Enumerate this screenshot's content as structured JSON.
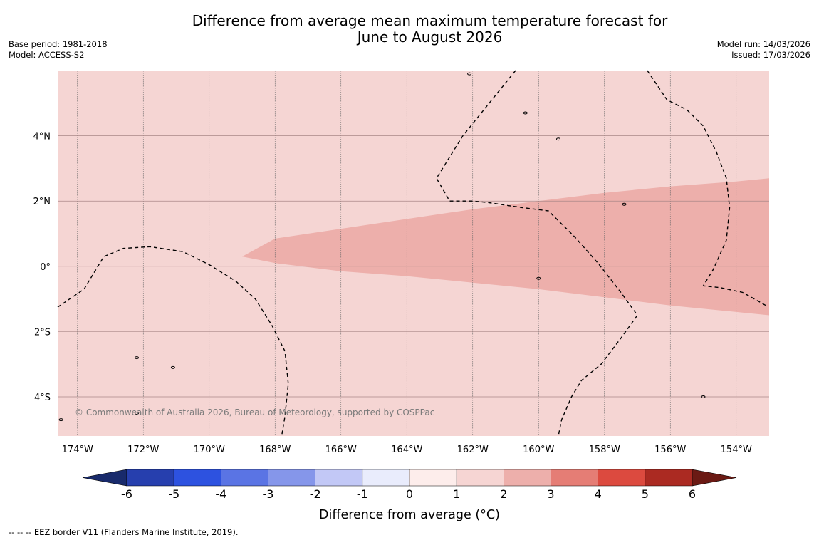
{
  "title_line1": "Difference from average mean maximum temperature forecast for",
  "title_line2": "June to August 2026",
  "base_period": "Base period: 1981-2018",
  "model": "Model: ACCESS-S2",
  "model_run": "Model run: 14/03/2026",
  "issued": "Issued: 17/03/2026",
  "copyright": "© Commonwealth of Australia 2026, Bureau of Meteorology, supported by COSPPac",
  "footnote": "--  --  -- EEZ border V11 (Flanders Marine Institute, 2019).",
  "map": {
    "lon_range": [
      -174.6,
      -153.0
    ],
    "lat_range": [
      -5.2,
      6.0
    ],
    "lon_ticks": [
      {
        "value": -174,
        "label": "174°W"
      },
      {
        "value": -172,
        "label": "172°W"
      },
      {
        "value": -170,
        "label": "170°W"
      },
      {
        "value": -168,
        "label": "168°W"
      },
      {
        "value": -166,
        "label": "166°W"
      },
      {
        "value": -164,
        "label": "164°W"
      },
      {
        "value": -162,
        "label": "162°W"
      },
      {
        "value": -160,
        "label": "160°W"
      },
      {
        "value": -158,
        "label": "158°W"
      },
      {
        "value": -156,
        "label": "156°W"
      },
      {
        "value": -154,
        "label": "154°W"
      }
    ],
    "lat_ticks": [
      {
        "value": 4,
        "label": "4°N"
      },
      {
        "value": 2,
        "label": "2°N"
      },
      {
        "value": 0,
        "label": "0°"
      },
      {
        "value": -2,
        "label": "2°S"
      },
      {
        "value": -4,
        "label": "4°S"
      }
    ],
    "background_category": "1 to 2",
    "anomaly_region_category": "2 to 3",
    "anomaly_region": [
      [
        -169.0,
        0.3
      ],
      [
        -168.0,
        0.85
      ],
      [
        -166.0,
        1.15
      ],
      [
        -164.0,
        1.45
      ],
      [
        -162.0,
        1.75
      ],
      [
        -160.0,
        2.0
      ],
      [
        -158.0,
        2.25
      ],
      [
        -156.0,
        2.45
      ],
      [
        -154.0,
        2.6
      ],
      [
        -153.0,
        2.7
      ],
      [
        -153.0,
        -1.5
      ],
      [
        -154.0,
        -1.4
      ],
      [
        -156.0,
        -1.2
      ],
      [
        -158.0,
        -0.95
      ],
      [
        -160.0,
        -0.7
      ],
      [
        -162.0,
        -0.5
      ],
      [
        -164.0,
        -0.3
      ],
      [
        -166.0,
        -0.15
      ],
      [
        -168.0,
        0.1
      ]
    ],
    "eez_lines": [
      [
        [
          -174.6,
          -1.25
        ],
        [
          -173.8,
          -0.7
        ],
        [
          -173.2,
          0.3
        ],
        [
          -172.6,
          0.55
        ],
        [
          -171.8,
          0.6
        ],
        [
          -170.8,
          0.45
        ],
        [
          -170.0,
          0.05
        ],
        [
          -169.2,
          -0.45
        ],
        [
          -168.6,
          -1.0
        ],
        [
          -168.1,
          -1.8
        ],
        [
          -167.7,
          -2.6
        ],
        [
          -167.6,
          -3.6
        ],
        [
          -167.7,
          -4.6
        ],
        [
          -167.8,
          -5.2
        ]
      ],
      [
        [
          -160.7,
          6.0
        ],
        [
          -161.5,
          5.0
        ],
        [
          -162.3,
          4.0
        ],
        [
          -163.1,
          2.7
        ],
        [
          -162.7,
          2.0
        ],
        [
          -162.0,
          2.0
        ],
        [
          -161.5,
          1.95
        ],
        [
          -160.5,
          1.8
        ],
        [
          -159.7,
          1.7
        ],
        [
          -158.9,
          0.9
        ],
        [
          -158.2,
          0.1
        ],
        [
          -157.5,
          -0.8
        ],
        [
          -157.0,
          -1.5
        ],
        [
          -157.5,
          -2.2
        ],
        [
          -158.1,
          -3.0
        ],
        [
          -158.7,
          -3.5
        ],
        [
          -159.0,
          -4.0
        ],
        [
          -159.3,
          -4.7
        ],
        [
          -159.4,
          -5.2
        ]
      ],
      [
        [
          -156.7,
          6.0
        ],
        [
          -156.1,
          5.1
        ],
        [
          -155.5,
          4.8
        ],
        [
          -155.0,
          4.3
        ],
        [
          -154.6,
          3.5
        ],
        [
          -154.3,
          2.7
        ],
        [
          -154.2,
          1.8
        ],
        [
          -154.3,
          0.8
        ],
        [
          -154.7,
          -0.1
        ],
        [
          -155.0,
          -0.6
        ],
        [
          -154.5,
          -0.65
        ],
        [
          -153.8,
          -0.8
        ],
        [
          -153.1,
          -1.2
        ]
      ]
    ],
    "islands": [
      {
        "lon": -162.1,
        "lat": 5.9
      },
      {
        "lon": -160.4,
        "lat": 4.7
      },
      {
        "lon": -159.4,
        "lat": 3.9
      },
      {
        "lon": -157.4,
        "lat": 1.9
      },
      {
        "lon": -172.2,
        "lat": -2.8
      },
      {
        "lon": -171.1,
        "lat": -3.1
      },
      {
        "lon": -172.2,
        "lat": -4.5
      },
      {
        "lon": -174.5,
        "lat": -4.7
      },
      {
        "lon": -155.0,
        "lat": -4.0
      },
      {
        "lon": -160.0,
        "lat": -0.37
      }
    ]
  },
  "colorbar": {
    "label": "Difference from average (°C)",
    "ticks": [
      "-6",
      "-5",
      "-4",
      "-3",
      "-2",
      "-1",
      "0",
      "1",
      "2",
      "3",
      "4",
      "5",
      "6"
    ],
    "low_extend_color": "#182a6b",
    "high_extend_color": "#6b1a14",
    "colors": [
      "#263fae",
      "#2d52e0",
      "#5a74e4",
      "#8596ea",
      "#c2c8f6",
      "#e9ecfc",
      "#fdedeb",
      "#f6d5d3",
      "#edafab",
      "#e57d75",
      "#dc4a3f",
      "#ab2a22"
    ]
  }
}
